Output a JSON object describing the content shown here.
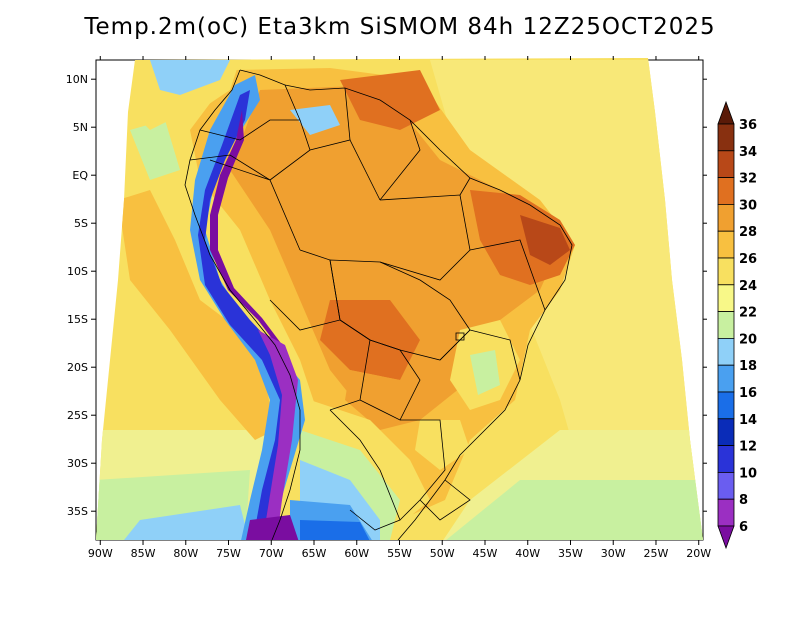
{
  "title": "Temp.2m(oC) Eta3km SiSMOM 84h 12Z25OCT2025",
  "map": {
    "lon_labels": [
      "90W",
      "85W",
      "80W",
      "75W",
      "70W",
      "65W",
      "60W",
      "55W",
      "50W",
      "45W",
      "40W",
      "35W",
      "30W",
      "25W",
      "20W"
    ],
    "lon_values": [
      -90,
      -85,
      -80,
      -75,
      -70,
      -65,
      -60,
      -55,
      -50,
      -45,
      -40,
      -35,
      -30,
      -25,
      -20
    ],
    "lat_labels": [
      "10N",
      "5N",
      "EQ",
      "5S",
      "10S",
      "15S",
      "20S",
      "25S",
      "30S",
      "35S"
    ],
    "lat_values": [
      10,
      5,
      0,
      -5,
      -10,
      -15,
      -20,
      -25,
      -30,
      -35
    ],
    "lon_range": [
      -90.5,
      -19.5
    ],
    "lat_range": [
      -38,
      12
    ]
  },
  "colorbar": {
    "levels": [
      6,
      8,
      10,
      12,
      14,
      16,
      18,
      20,
      22,
      24,
      26,
      28,
      30,
      32,
      34,
      36
    ],
    "labels": [
      "6",
      "8",
      "10",
      "12",
      "14",
      "16",
      "18",
      "20",
      "22",
      "24",
      "26",
      "28",
      "30",
      "32",
      "34",
      "36"
    ],
    "colors": [
      "#7a0da0",
      "#9b2fc2",
      "#6a5df0",
      "#2a33d8",
      "#0a2cb8",
      "#1a6ee8",
      "#4aa0f0",
      "#8fd0f8",
      "#c8f0a0",
      "#f8f888",
      "#f8e060",
      "#f8c040",
      "#f0a030",
      "#e07020",
      "#b84818",
      "#883010",
      "#5a1a08"
    ]
  }
}
